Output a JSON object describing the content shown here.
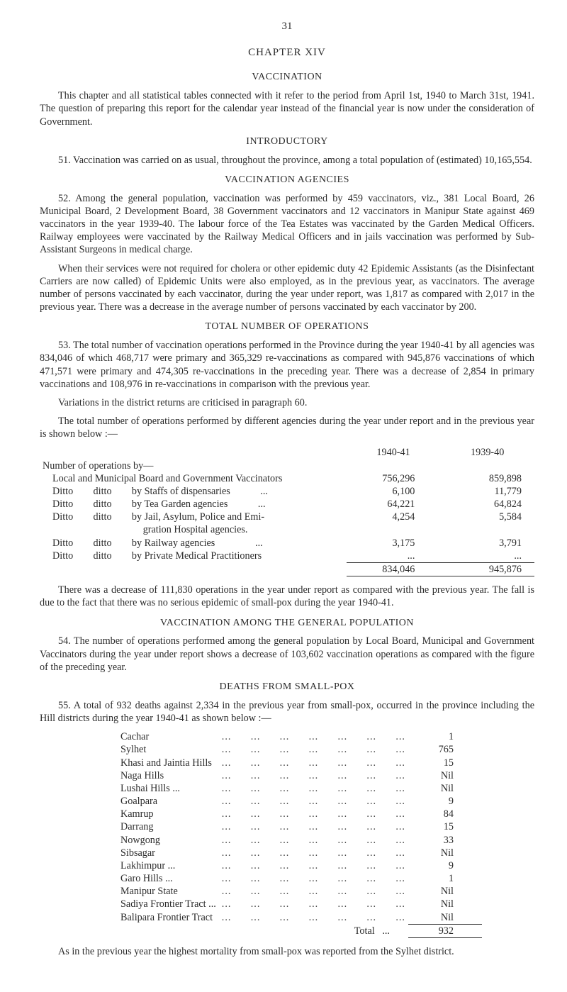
{
  "page_number": "31",
  "chapter": "CHAPTER XIV",
  "title_main": "VACCINATION",
  "intro_para": "This chapter and all statistical tables connected with it refer to the period from April 1st, 1940 to March 31st, 1941. The question of preparing this report for the calendar year instead of the financial year is now under the consideration of Government.",
  "heading_introductory": "INTRODUCTORY",
  "para_51": "51. Vaccination was carried on as usual, throughout the province, among a total population of (estimated) 10,165,554.",
  "heading_agencies": "VACCINATION AGENCIES",
  "para_52a": "52. Among the general population, vaccination was performed by 459 vaccinators, viz., 381 Local Board, 26 Municipal Board, 2 Development Board, 38 Government vaccinators and 12 vaccinators in Manipur State against 469 vaccinators in the year 1939-40. The labour force of the Tea Estates was vaccinated by the Garden Medical Officers. Railway employees were vaccinated by the Railway Medical Officers and in jails vaccination was performed by Sub-Assistant Sur­geons in medical charge.",
  "para_52b": "When their services were not required for cholera or other epidemic duty 42 Epidemic Assist­ants (as the Disinfectant Carriers are now called) of Epidemic Units were also employed, as in the previous year, as vaccinators. The average number of persons vaccinated by each vaccinator, during the year under report, was 1,817 as compared with 2,017 in the previous year. There was a decrease in the average number of persons vaccinated by each vaccinator by 200.",
  "heading_total_ops": "TOTAL NUMBER OF OPERATIONS",
  "para_53a": "53. The total number of vaccination operations performed in the Province during the year 1940-41 by all agencies was 834,046 of which 468,717 were primary and 365,329 re-vaccinations as compared with 945,876 vaccinations of which 471,571 were primary and 474,305 re-vaccinations in the preceding year. There was a decrease of 2,854 in primary vaccinations and 108,976 in re-vaccinations in comparison with the previous year.",
  "para_53b": "Variations in the district returns are criticised in paragraph 60.",
  "para_53c": "The total number of operations performed by different agencies during the year under report and in the previous year is shown below :—",
  "ops_years": {
    "y1": "1940-41",
    "y2": "1939-40"
  },
  "ops_head": "Number of operations by—",
  "ops_rows": [
    {
      "label": "Local and Municipal Board and Government Vaccinators",
      "v1": "756,296",
      "v2": "859,898"
    },
    {
      "label": "Ditto  ditto  by Staffs of dispensaries   ...",
      "v1": "6,100",
      "v2": "11,779"
    },
    {
      "label": "Ditto  ditto  by Tea Garden agencies   ...",
      "v1": "64,221",
      "v2": "64,824"
    },
    {
      "label": "Ditto  ditto  by Jail, Asylum, Police and Emi-",
      "v1": "4,254",
      "v2": "5,584"
    },
    {
      "label": "         gration Hospital agencies.",
      "v1": "",
      "v2": ""
    },
    {
      "label": "Ditto  ditto  by Railway agencies    ...",
      "v1": "3,175",
      "v2": "3,791"
    },
    {
      "label": "Ditto  ditto  by Private Medical Practitioners",
      "v1": "...",
      "v2": "..."
    }
  ],
  "ops_total": {
    "v1": "834,046",
    "v2": "945,876"
  },
  "para_after_table": "There was a decrease of 111,830 operations in the year under report as compared with the previous year. The fall is due to the fact that there was no serious epidemic of small-pox during the year 1940-41.",
  "heading_general_pop": "VACCINATION AMONG THE GENERAL POPULATION",
  "para_54": "54. The number of operations performed among the general population by Local Board, Municipal and Government Vaccinators during the year under report shows a decrease of 103,602 vaccination operations as compared with the figure of the preceding year.",
  "heading_deaths": "DEATHS FROM SMALL-POX",
  "para_55": "55. A total of 932 deaths against 2,334 in the previous year from small-pox, occurred in the province including the Hill districts during the year 1940-41 as shown below :—",
  "districts": [
    {
      "name": "Cachar",
      "val": "1"
    },
    {
      "name": "Sylhet",
      "val": "765"
    },
    {
      "name": "Khasi and Jaintia Hills",
      "val": "15"
    },
    {
      "name": "Naga Hills",
      "val": "Nil"
    },
    {
      "name": "Lushai Hills ...",
      "val": "Nil"
    },
    {
      "name": "Goalpara",
      "val": "9"
    },
    {
      "name": "Kamrup",
      "val": "84"
    },
    {
      "name": "Darrang",
      "val": "15"
    },
    {
      "name": "Nowgong",
      "val": "33"
    },
    {
      "name": "Sibsagar",
      "val": "Nil"
    },
    {
      "name": "Lakhimpur ...",
      "val": "9"
    },
    {
      "name": "Garo Hills   ...",
      "val": "1"
    },
    {
      "name": "Manipur State",
      "val": "Nil"
    },
    {
      "name": "Sadiya Frontier Tract ...",
      "val": "Nil"
    },
    {
      "name": "Balipara Frontier Tract",
      "val": "Nil"
    }
  ],
  "district_total_label": "Total",
  "district_total_val": "932",
  "closing_para": "As in the previous year the highest mortality from small-pox was reported from the Sylhet district."
}
